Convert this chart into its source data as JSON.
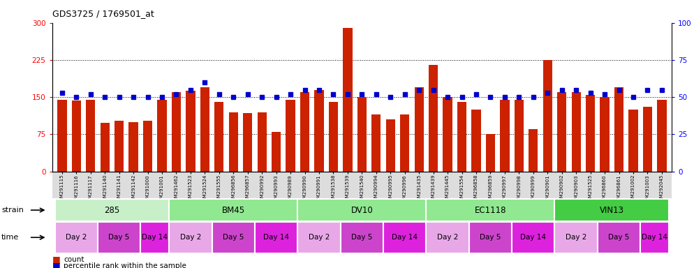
{
  "title": "GDS3725 / 1769501_at",
  "samples": [
    "GSM291115",
    "GSM291116",
    "GSM291117",
    "GSM291140",
    "GSM291141",
    "GSM291142",
    "GSM291000",
    "GSM291001",
    "GSM291462",
    "GSM291523",
    "GSM291524",
    "GSM291555",
    "GSM296856",
    "GSM296857",
    "GSM290992",
    "GSM290993",
    "GSM290989",
    "GSM290990",
    "GSM290991",
    "GSM291538",
    "GSM291539",
    "GSM291540",
    "GSM290994",
    "GSM290995",
    "GSM290996",
    "GSM291435",
    "GSM291439",
    "GSM291445",
    "GSM291554",
    "GSM296858",
    "GSM296859",
    "GSM290997",
    "GSM290998",
    "GSM290999",
    "GSM290901",
    "GSM290902",
    "GSM290903",
    "GSM291525",
    "GSM296860",
    "GSM296861",
    "GSM291002",
    "GSM291003",
    "GSM292045"
  ],
  "counts": [
    145,
    143,
    145,
    98,
    103,
    100,
    103,
    145,
    160,
    163,
    170,
    140,
    120,
    118,
    120,
    80,
    145,
    160,
    165,
    140,
    290,
    150,
    115,
    105,
    115,
    170,
    215,
    150,
    140,
    125,
    75,
    145,
    145,
    85,
    225,
    160,
    160,
    155,
    150,
    170,
    125,
    130,
    145
  ],
  "percentile_ranks": [
    53,
    50,
    52,
    50,
    50,
    50,
    50,
    50,
    52,
    55,
    60,
    52,
    50,
    52,
    50,
    50,
    52,
    55,
    55,
    52,
    52,
    52,
    52,
    50,
    52,
    55,
    55,
    50,
    50,
    52,
    50,
    50,
    50,
    50,
    53,
    55,
    55,
    53,
    52,
    55,
    50,
    55,
    55
  ],
  "strains": [
    {
      "name": "285",
      "start": 0,
      "end": 8,
      "color": "#c8f0c8"
    },
    {
      "name": "BM45",
      "start": 8,
      "end": 17,
      "color": "#90e890"
    },
    {
      "name": "DV10",
      "start": 17,
      "end": 26,
      "color": "#90e890"
    },
    {
      "name": "EC1118",
      "start": 26,
      "end": 35,
      "color": "#90e890"
    },
    {
      "name": "VIN13",
      "start": 35,
      "end": 43,
      "color": "#44cc44"
    }
  ],
  "times": [
    {
      "label": "Day 2",
      "start": 0,
      "end": 3,
      "color": "#e8a8e8"
    },
    {
      "label": "Day 5",
      "start": 3,
      "end": 6,
      "color": "#cc44cc"
    },
    {
      "label": "Day 14",
      "start": 6,
      "end": 8,
      "color": "#dd22dd"
    },
    {
      "label": "Day 2",
      "start": 8,
      "end": 11,
      "color": "#e8a8e8"
    },
    {
      "label": "Day 5",
      "start": 11,
      "end": 14,
      "color": "#cc44cc"
    },
    {
      "label": "Day 14",
      "start": 14,
      "end": 17,
      "color": "#dd22dd"
    },
    {
      "label": "Day 2",
      "start": 17,
      "end": 20,
      "color": "#e8a8e8"
    },
    {
      "label": "Day 5",
      "start": 20,
      "end": 23,
      "color": "#cc44cc"
    },
    {
      "label": "Day 14",
      "start": 23,
      "end": 26,
      "color": "#dd22dd"
    },
    {
      "label": "Day 2",
      "start": 26,
      "end": 29,
      "color": "#e8a8e8"
    },
    {
      "label": "Day 5",
      "start": 29,
      "end": 32,
      "color": "#cc44cc"
    },
    {
      "label": "Day 14",
      "start": 32,
      "end": 35,
      "color": "#dd22dd"
    },
    {
      "label": "Day 2",
      "start": 35,
      "end": 38,
      "color": "#e8a8e8"
    },
    {
      "label": "Day 5",
      "start": 38,
      "end": 41,
      "color": "#cc44cc"
    },
    {
      "label": "Day 14",
      "start": 41,
      "end": 43,
      "color": "#dd22dd"
    }
  ],
  "bar_color": "#cc2200",
  "dot_color": "#0000cc",
  "ylim_left": [
    0,
    300
  ],
  "ylim_right": [
    0,
    100
  ],
  "yticks_left": [
    0,
    75,
    150,
    225,
    300
  ],
  "yticks_right": [
    0,
    25,
    50,
    75,
    100
  ],
  "grid_lines": [
    75,
    150,
    225
  ],
  "xtick_bg": "#dddddd"
}
